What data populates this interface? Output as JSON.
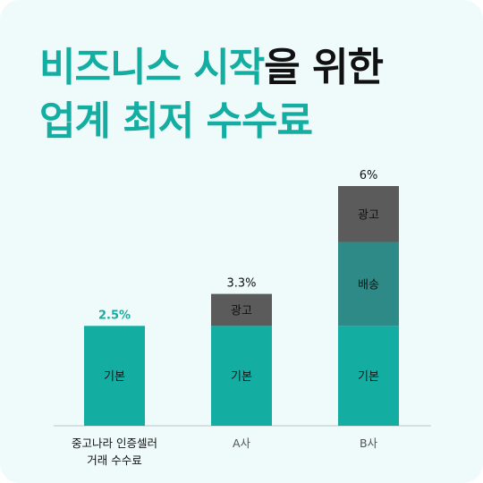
{
  "headline": {
    "line1_accent": "비즈니스 시작",
    "line1_rest": "을 위한",
    "line2": "업계 최저 수수료"
  },
  "colors": {
    "accent": "#13ada2",
    "base": "#13ada2",
    "shipping": "#2e8a86",
    "ad": "#5b5b5b",
    "text": "#111111",
    "muted": "#555555",
    "baseline": "#cfd8d7",
    "background": "#eefbfa"
  },
  "chart_data": {
    "type": "bar",
    "stacked": true,
    "categories": [
      "중고나라 인증셀러\n거래 수수료",
      "A사",
      "B사"
    ],
    "series": [
      {
        "name": "기본",
        "values": [
          2.5,
          2.5,
          2.5
        ],
        "color": "#13ada2"
      },
      {
        "name": "배송",
        "values": [
          0,
          0,
          2.1
        ],
        "color": "#2e8a86"
      },
      {
        "name": "광고",
        "values": [
          0,
          0.8,
          1.4
        ],
        "color": "#5b5b5b"
      }
    ],
    "totals": [
      "2.5%",
      "3.3%",
      "6%"
    ],
    "highlight_index": 0,
    "ylim": [
      0,
      6
    ],
    "grid": false
  }
}
